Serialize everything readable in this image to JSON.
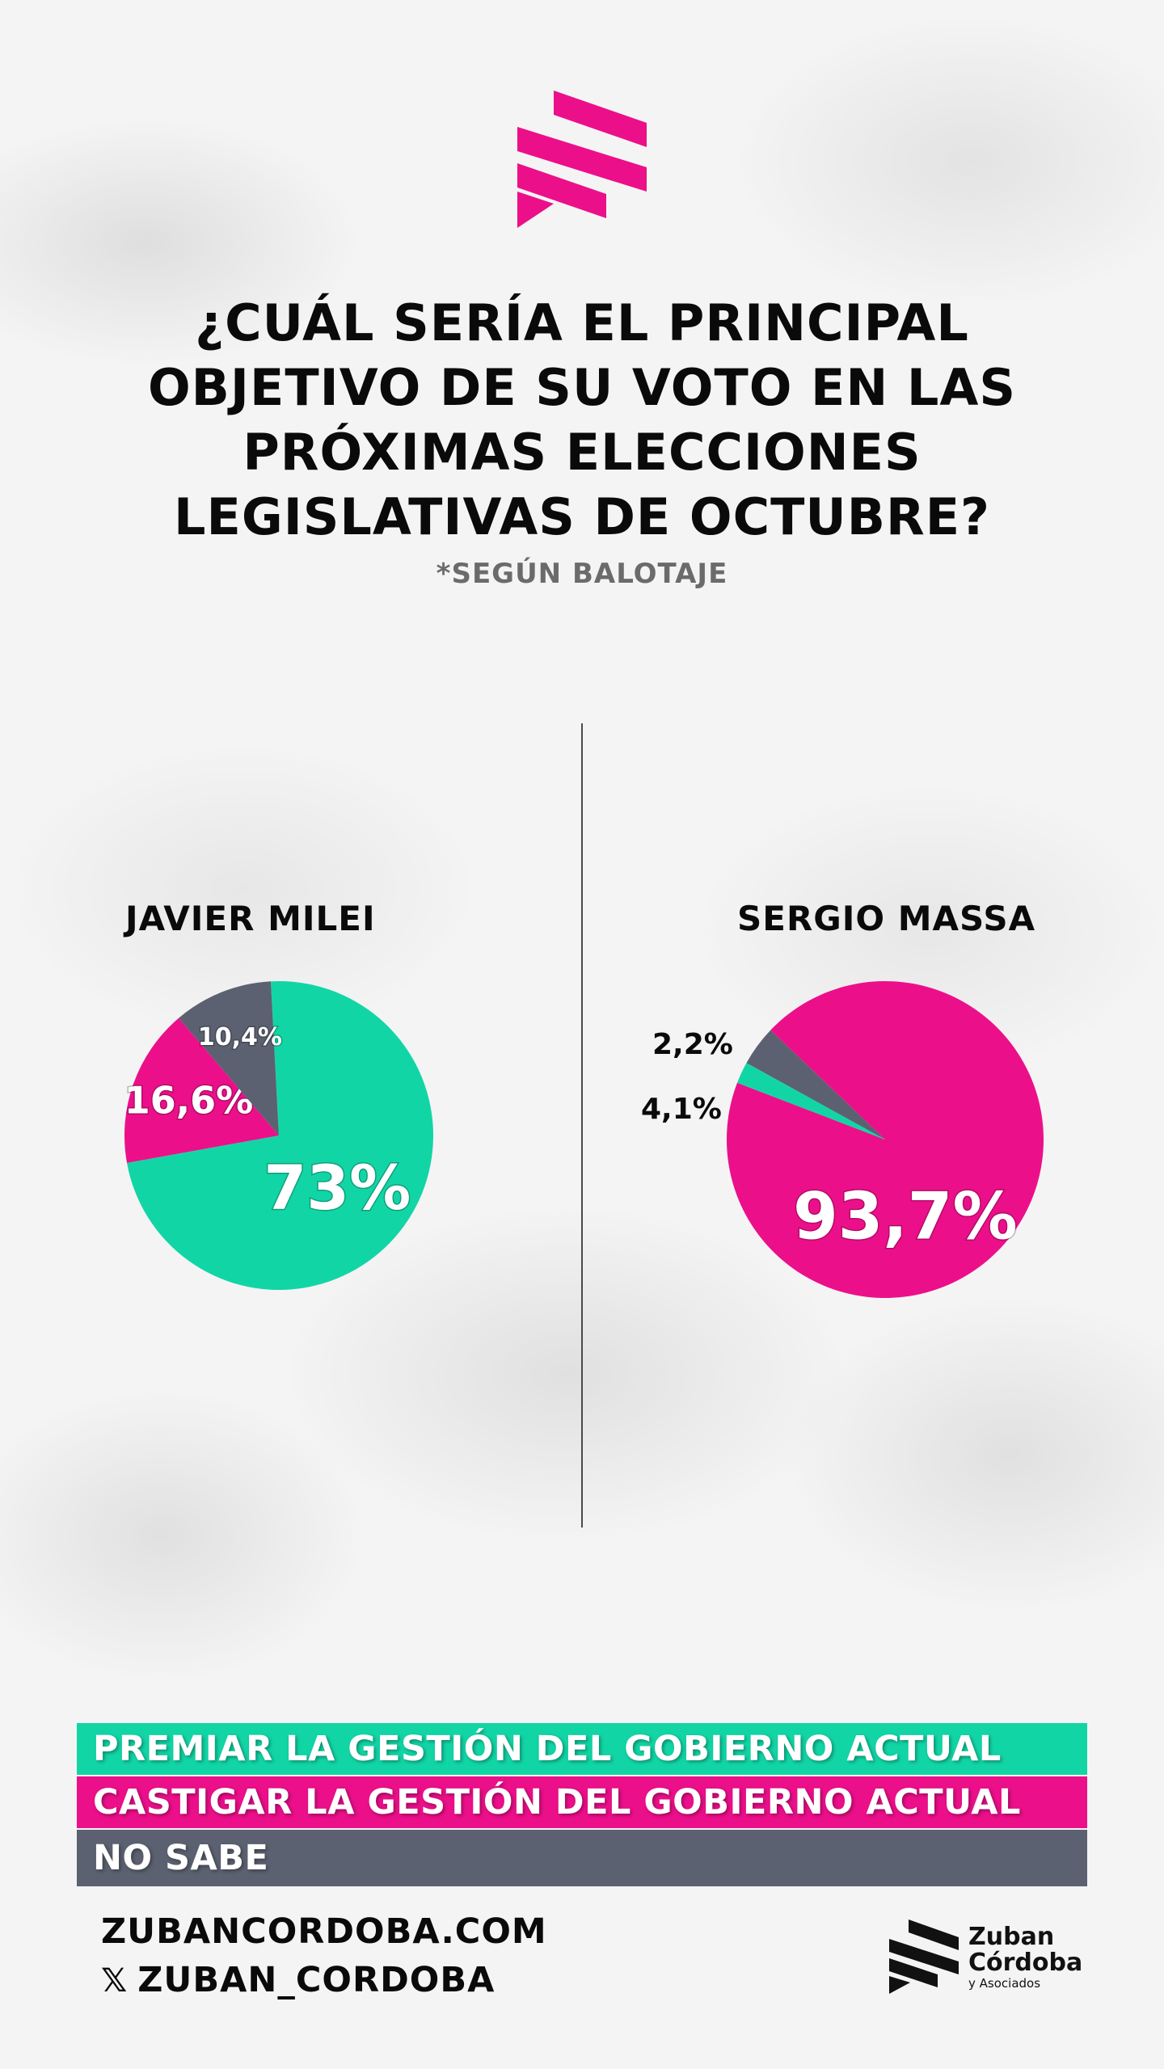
{
  "title": "¿CUÁL SERÍA EL PRINCIPAL OBJETIVO DE SU VOTO EN LAS PRÓXIMAS ELECCIONES LEGISLATIVAS DE OCTUBRE?",
  "subtitle": "*SEGÚN BALOTAJE",
  "colors": {
    "premiar": "#12d5a6",
    "castigar": "#ec0f8a",
    "nosabe": "#5b6170"
  },
  "chart_data": [
    {
      "type": "pie",
      "title": "JAVIER MILEI",
      "slices": [
        {
          "category": "PREMIAR LA GESTIÓN DEL GOBIERNO ACTUAL",
          "value": 73,
          "label": "73%"
        },
        {
          "category": "CASTIGAR LA GESTIÓN DEL GOBIERNO ACTUAL",
          "value": 16.6,
          "label": "16,6%"
        },
        {
          "category": "NO SABE",
          "value": 10.4,
          "label": "10,4%"
        }
      ]
    },
    {
      "type": "pie",
      "title": "SERGIO MASSA",
      "slices": [
        {
          "category": "CASTIGAR LA GESTIÓN DEL GOBIERNO ACTUAL",
          "value": 93.7,
          "label": "93,7%"
        },
        {
          "category": "NO SABE",
          "value": 4.1,
          "label": "4,1%"
        },
        {
          "category": "PREMIAR LA GESTIÓN DEL GOBIERNO ACTUAL",
          "value": 2.2,
          "label": "2,2%"
        }
      ]
    }
  ],
  "legend": [
    {
      "label": "PREMIAR LA GESTIÓN DEL GOBIERNO ACTUAL"
    },
    {
      "label": "CASTIGAR LA GESTIÓN DEL GOBIERNO ACTUAL"
    },
    {
      "label": "NO SABE"
    }
  ],
  "footer": {
    "website": "ZUBANCORDOBA.COM",
    "social_icon": "x-logo-icon",
    "social_handle": "ZUBAN_CORDOBA"
  },
  "brand": {
    "line1": "Zuban",
    "line2": "Córdoba",
    "line3": "y Asociados"
  }
}
